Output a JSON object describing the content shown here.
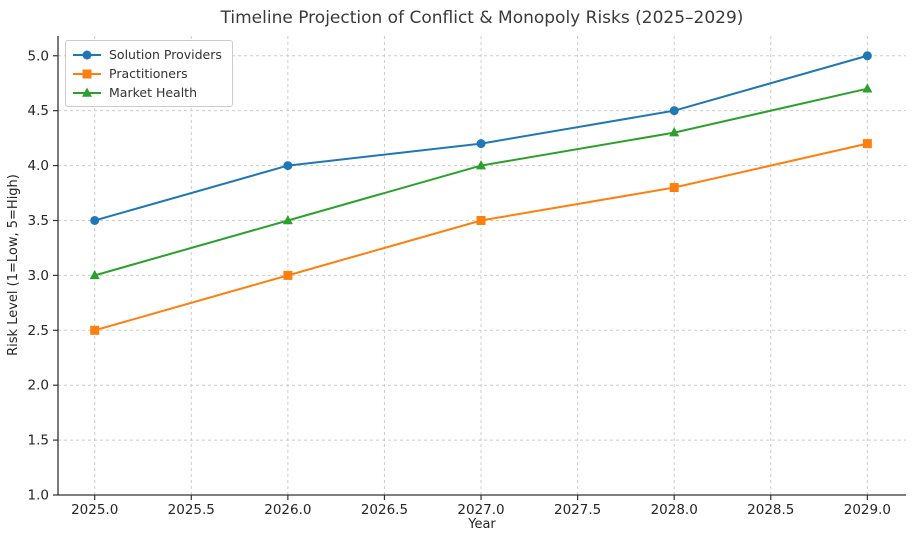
{
  "chart_data": {
    "type": "line",
    "title": "Timeline Projection of Conflict & Monopoly Risks (2025–2029)",
    "xlabel": "Year",
    "ylabel": "Risk Level (1=Low, 5=High)",
    "x": [
      2025,
      2026,
      2027,
      2028,
      2029
    ],
    "series": [
      {
        "name": "Solution Providers",
        "color": "#1f77b4",
        "marker": "circle",
        "values": [
          3.5,
          4.0,
          4.2,
          4.5,
          5.0
        ]
      },
      {
        "name": "Practitioners",
        "color": "#ff7f0e",
        "marker": "square",
        "values": [
          2.5,
          3.0,
          3.5,
          3.8,
          4.2
        ]
      },
      {
        "name": "Market Health",
        "color": "#2ca02c",
        "marker": "triangle",
        "values": [
          3.0,
          3.5,
          4.0,
          4.3,
          4.7
        ]
      }
    ],
    "x_ticks": [
      2025.0,
      2025.5,
      2026.0,
      2026.5,
      2027.0,
      2027.5,
      2028.0,
      2028.5,
      2029.0
    ],
    "x_tick_labels": [
      "2025.0",
      "2025.5",
      "2026.0",
      "2026.5",
      "2027.0",
      "2027.5",
      "2028.0",
      "2028.5",
      "2029.0"
    ],
    "y_ticks": [
      1.0,
      1.5,
      2.0,
      2.5,
      3.0,
      3.5,
      4.0,
      4.5,
      5.0
    ],
    "y_tick_labels": [
      "1.0",
      "1.5",
      "2.0",
      "2.5",
      "3.0",
      "3.5",
      "4.0",
      "4.5",
      "5.0"
    ],
    "xlim": [
      2024.81,
      2029.2
    ],
    "ylim": [
      1.0,
      5.18
    ],
    "grid": true,
    "grid_style": "dashed",
    "legend_position": "upper left",
    "colors": {
      "background": "#ffffff",
      "grid": "#cccccc",
      "spine": "#333333",
      "text": "#262626"
    }
  }
}
